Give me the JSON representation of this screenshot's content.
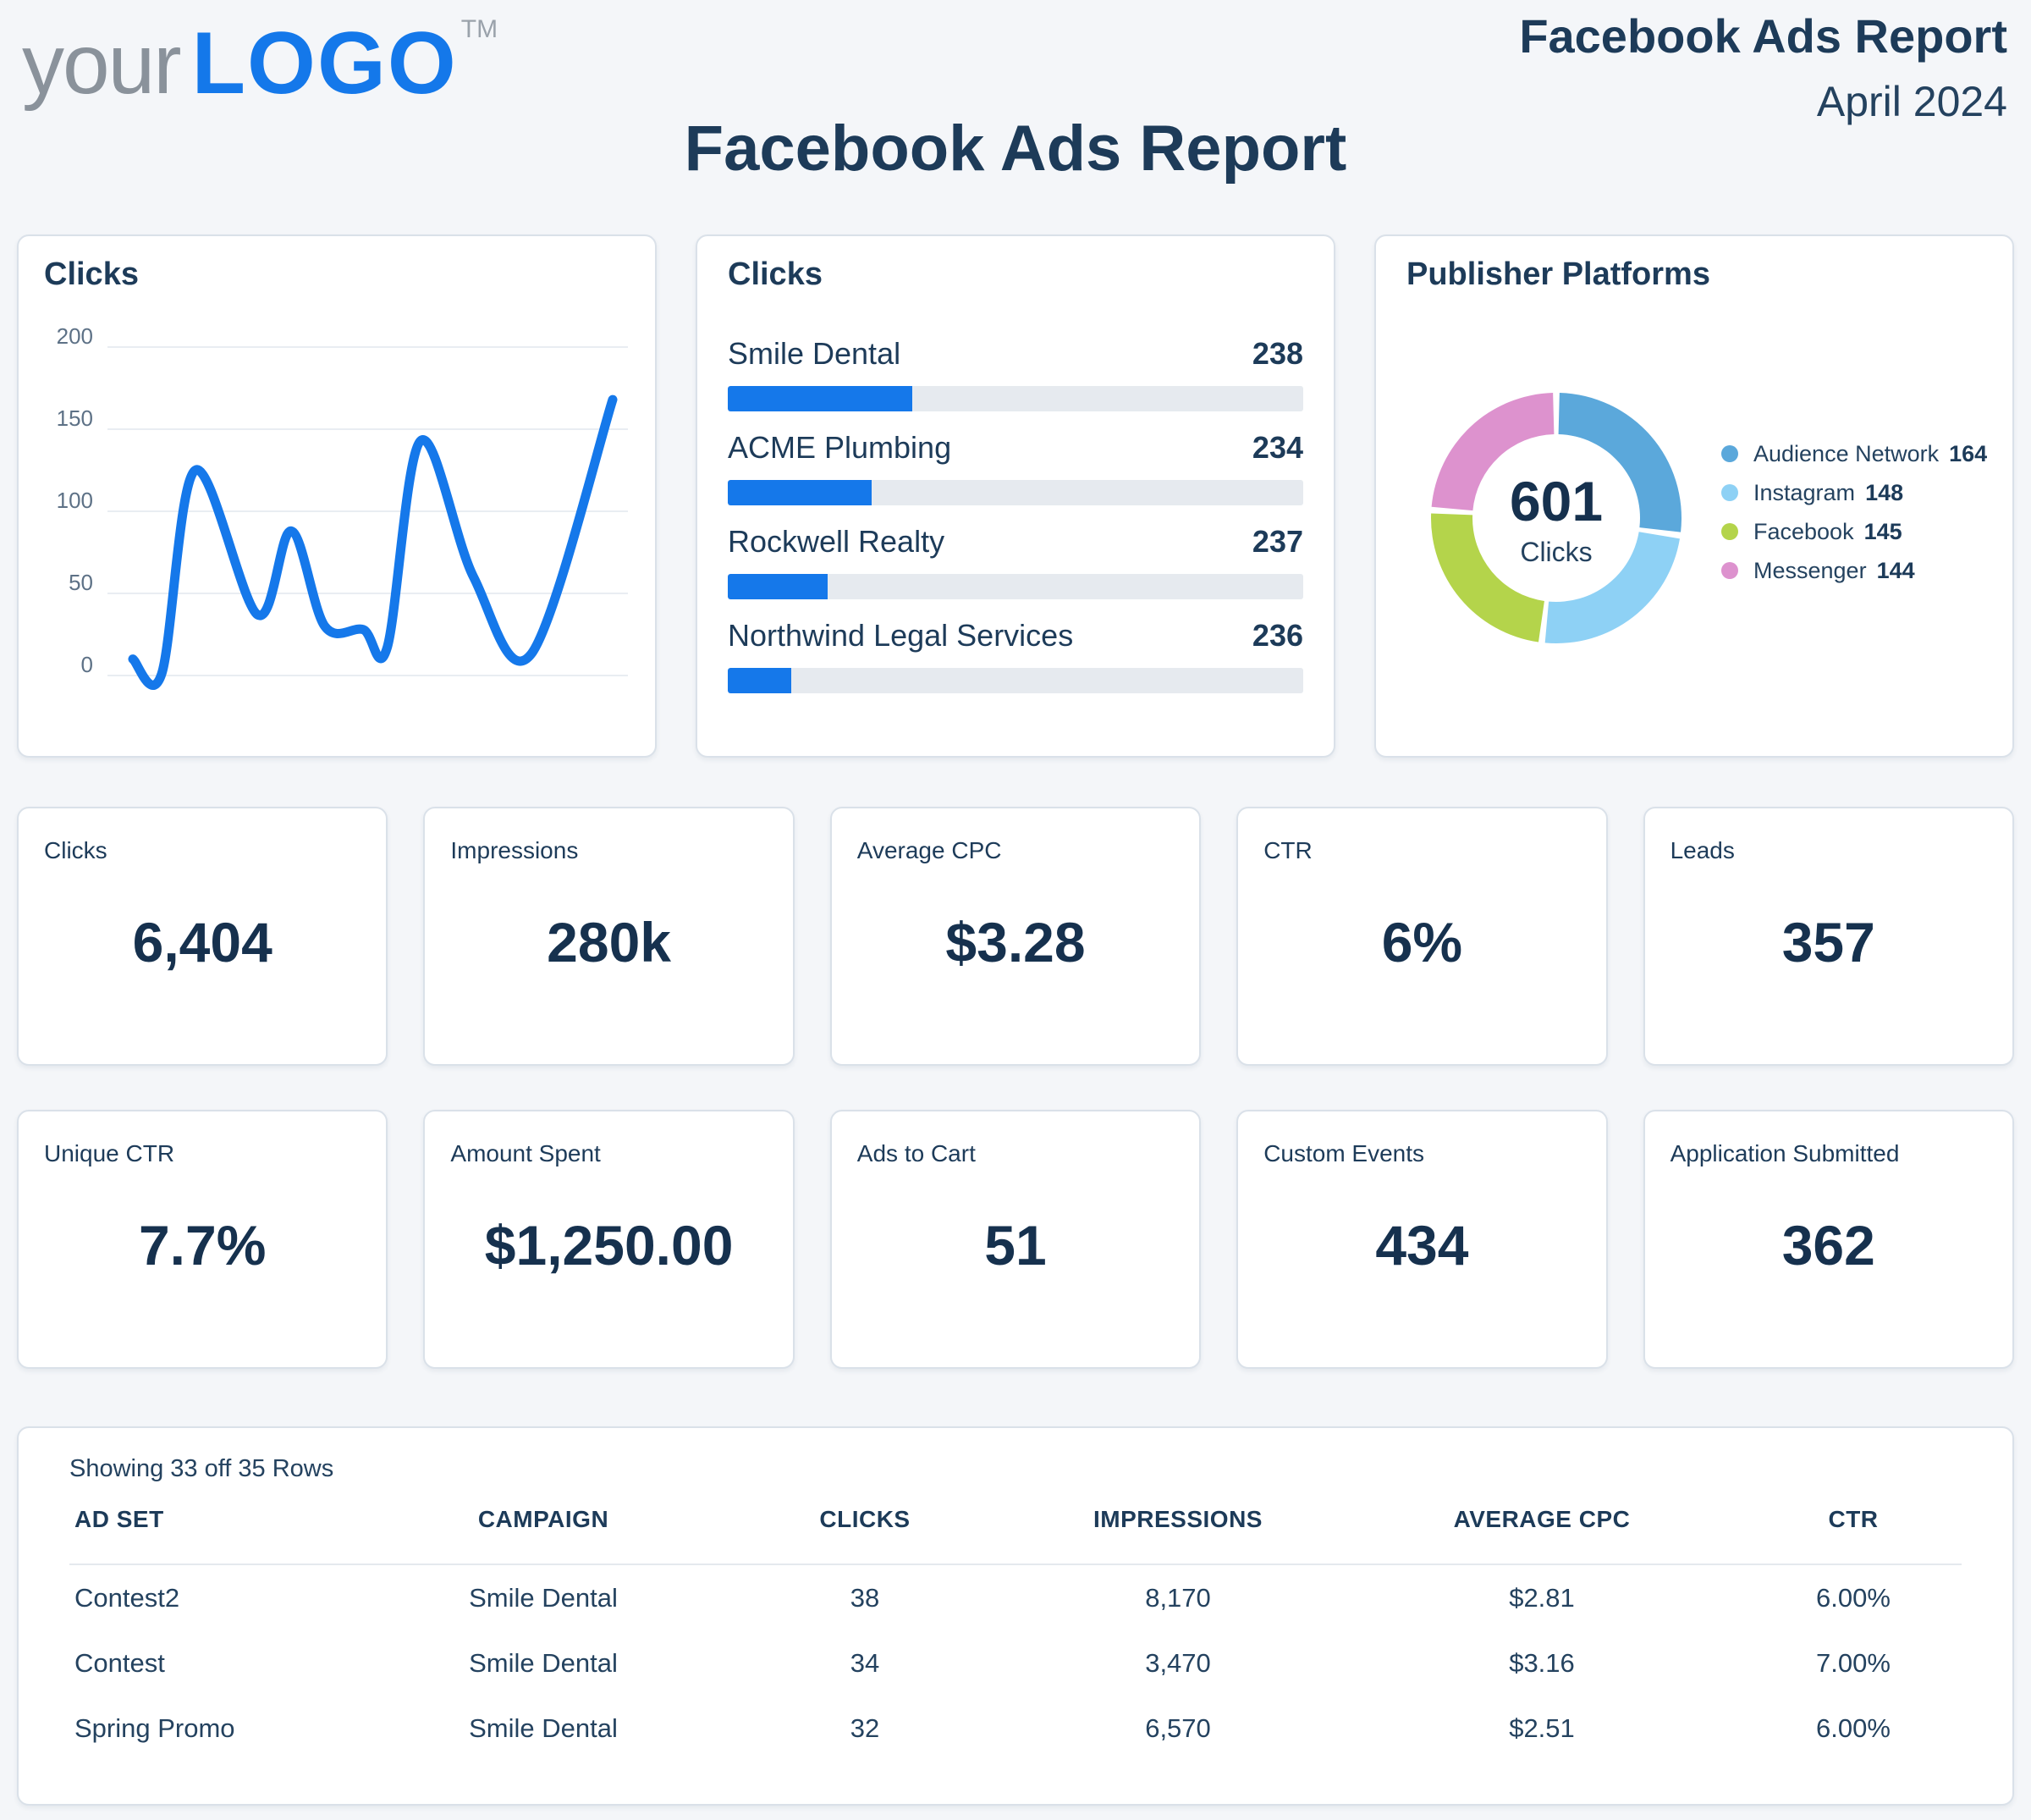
{
  "header": {
    "logo": {
      "prefix": "your",
      "name": "LOGO",
      "tm": "TM"
    },
    "report_title": "Facebook Ads Report",
    "report_period": "April 2024"
  },
  "page_title": "Facebook Ads Report",
  "colors": {
    "page_bg": "#f4f6f9",
    "card_bg": "#ffffff",
    "card_border": "#dae1e9",
    "navy": "#1d3b59",
    "text": "#24425f",
    "muted": "#5d7186",
    "accent_blue": "#1578ea",
    "bar_track": "#e6eaef",
    "gridline": "#e9edf2",
    "logo_gray": "#8a929b",
    "logo_blue": "#1478ea"
  },
  "chart_data": [
    {
      "id": "clicks-line",
      "type": "line",
      "title": "Clicks",
      "xlabel": "",
      "ylabel": "",
      "ylim": [
        0,
        200
      ],
      "yticks": [
        200,
        150,
        100,
        50,
        0
      ],
      "grid": true,
      "line_color": "#1578ea",
      "x_domain": [
        0,
        100
      ],
      "points": [
        [
          0,
          10
        ],
        [
          6,
          1
        ],
        [
          13,
          125
        ],
        [
          26,
          37
        ],
        [
          33,
          88
        ],
        [
          40,
          30
        ],
        [
          48,
          28
        ],
        [
          53,
          17
        ],
        [
          60,
          143
        ],
        [
          71,
          60
        ],
        [
          83,
          13
        ],
        [
          100,
          168
        ]
      ]
    },
    {
      "id": "clicks-bars",
      "type": "bar",
      "title": "Clicks",
      "bar_color": "#1578ea",
      "track_color": "#e6eaef",
      "items": [
        {
          "label": "Smile Dental",
          "value": "238",
          "fill_percent": 32
        },
        {
          "label": "ACME Plumbing",
          "value": "234",
          "fill_percent": 25
        },
        {
          "label": "Rockwell Realty",
          "value": "237",
          "fill_percent": 17.3
        },
        {
          "label": "Northwind Legal Services",
          "value": "236",
          "fill_percent": 11
        }
      ]
    },
    {
      "id": "publisher-platforms",
      "type": "pie",
      "title": "Publisher Platforms",
      "center_value": "601",
      "center_label": "Clicks",
      "total": 601,
      "gap_degrees": 3,
      "start_angle": "top",
      "legend_position": "right",
      "segments": [
        {
          "label": "Audience Network",
          "value": "164",
          "color": "#5ba8db"
        },
        {
          "label": "Instagram",
          "value": "148",
          "color": "#8ed1f5"
        },
        {
          "label": "Facebook",
          "value": "145",
          "color": "#b4d44b"
        },
        {
          "label": "Messenger",
          "value": "144",
          "color": "#dd92ce"
        }
      ]
    }
  ],
  "kpis": [
    {
      "label": "Clicks",
      "value": "6,404"
    },
    {
      "label": "Impressions",
      "value": "280k"
    },
    {
      "label": "Average CPC",
      "value": "$3.28"
    },
    {
      "label": "CTR",
      "value": "6%"
    },
    {
      "label": "Leads",
      "value": "357"
    },
    {
      "label": "Unique CTR",
      "value": "7.7%"
    },
    {
      "label": "Amount Spent",
      "value": "$1,250.00"
    },
    {
      "label": "Ads to Cart",
      "value": "51"
    },
    {
      "label": "Custom Events",
      "value": "434"
    },
    {
      "label": "Application Submitted",
      "value": "362"
    }
  ],
  "table": {
    "summary": "Showing 33 off 35 Rows",
    "columns": [
      "AD SET",
      "CAMPAIGN",
      "CLICKS",
      "IMPRESSIONS",
      "AVERAGE CPC",
      "CTR"
    ],
    "rows": [
      [
        "Contest2",
        "Smile Dental",
        "38",
        "8,170",
        "$2.81",
        "6.00%"
      ],
      [
        "Contest",
        "Smile Dental",
        "34",
        "3,470",
        "$3.16",
        "7.00%"
      ],
      [
        "Spring Promo",
        "Smile Dental",
        "32",
        "6,570",
        "$2.51",
        "6.00%"
      ]
    ]
  }
}
